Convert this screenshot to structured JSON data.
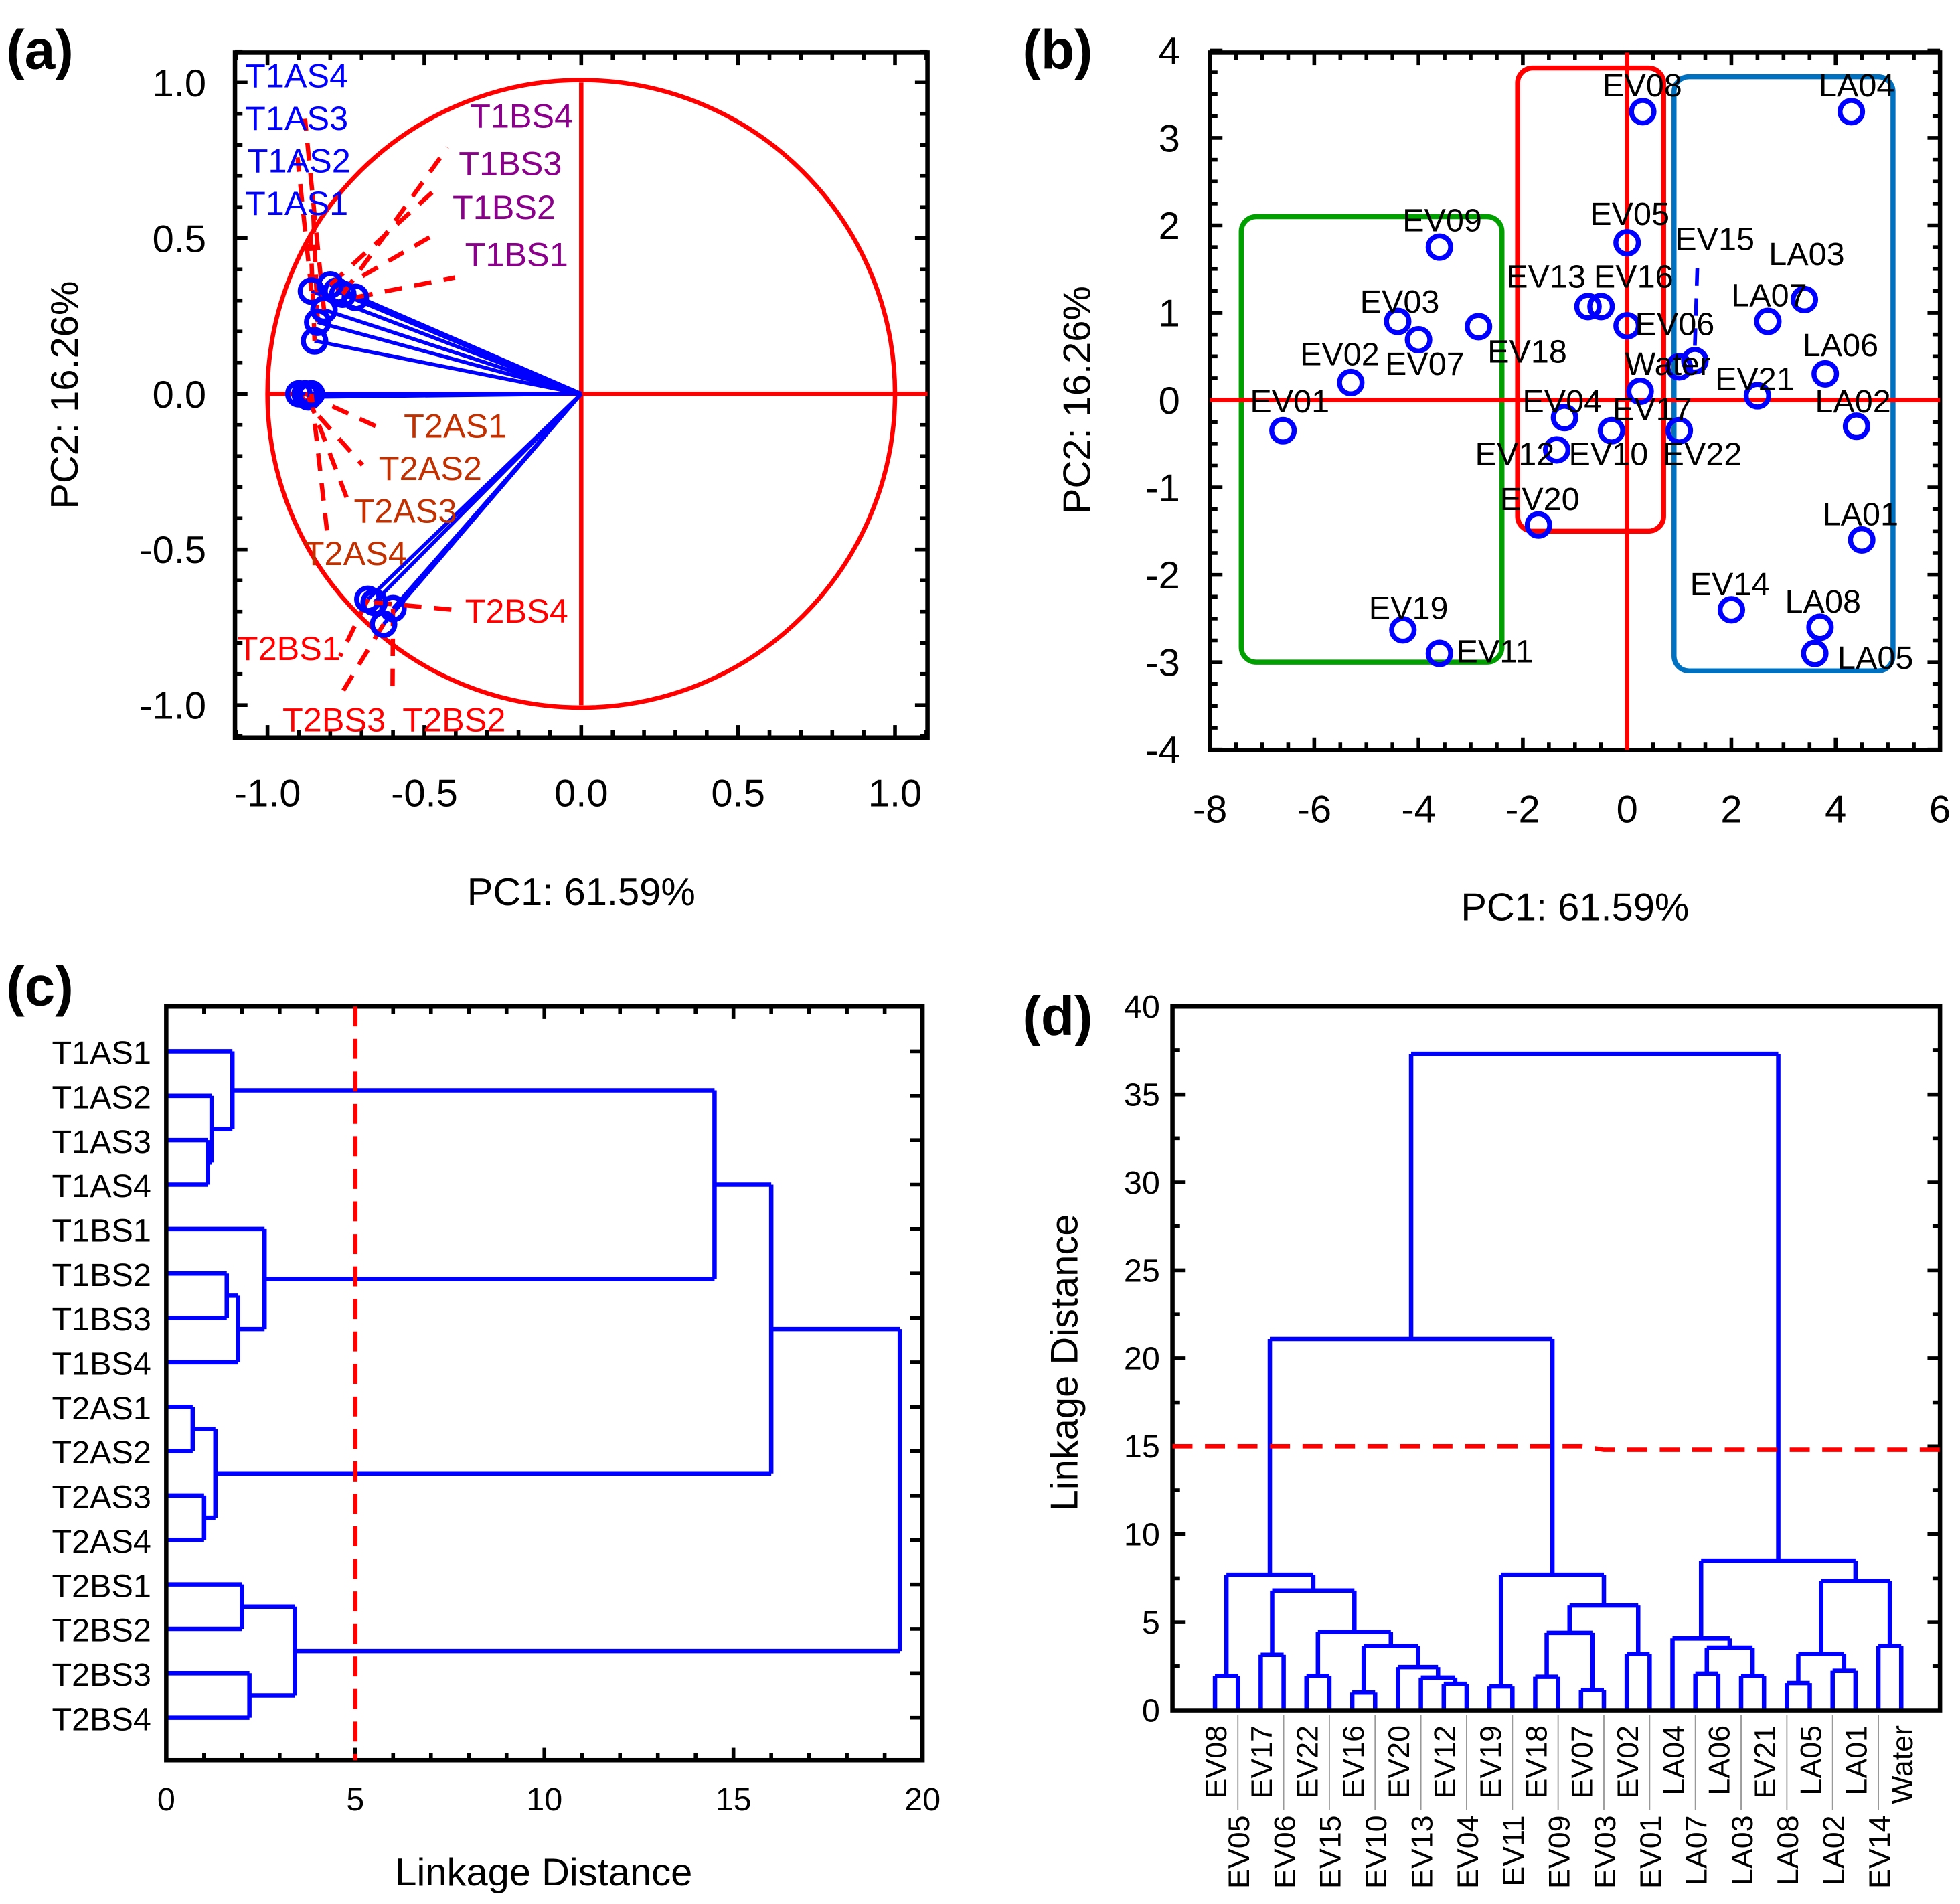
{
  "colors": {
    "blue": "#0000FF",
    "red": "#FF0000",
    "purple": "#8B008B",
    "orange": "#C03000",
    "green": "#00A000",
    "steel": "#0070C0",
    "axis": "#000000"
  },
  "chart_data": [
    {
      "panel": "(a)",
      "type": "scatter",
      "title": "",
      "xlabel": "PC1: 61.59%",
      "ylabel": "PC2: 16.26%",
      "xlim": [
        -1.1,
        1.1
      ],
      "ylim": [
        -1.1,
        1.1
      ],
      "xticks": [
        "-1.0",
        "-0.5",
        "0.0",
        "0.5",
        "1.0"
      ],
      "yticks": [
        "1.0",
        "0.5",
        "0.0",
        "-0.5",
        "-1.0"
      ],
      "unit_circle_radius": 1.0,
      "loadings": [
        {
          "name": "T1AS1",
          "x": -0.85,
          "y": 0.17,
          "group": "T1AS"
        },
        {
          "name": "T1AS2",
          "x": -0.84,
          "y": 0.23,
          "group": "T1AS"
        },
        {
          "name": "T1AS3",
          "x": -0.86,
          "y": 0.33,
          "group": "T1AS"
        },
        {
          "name": "T1AS4",
          "x": -0.82,
          "y": 0.27,
          "group": "T1AS"
        },
        {
          "name": "T1BS1",
          "x": -0.72,
          "y": 0.31,
          "group": "T1BS"
        },
        {
          "name": "T1BS2",
          "x": -0.78,
          "y": 0.33,
          "group": "T1BS"
        },
        {
          "name": "T1BS3",
          "x": -0.8,
          "y": 0.35,
          "group": "T1BS"
        },
        {
          "name": "T1BS4",
          "x": -0.76,
          "y": 0.32,
          "group": "T1BS"
        },
        {
          "name": "T2AS1",
          "x": -0.88,
          "y": 0.0,
          "group": "T2AS"
        },
        {
          "name": "T2AS2",
          "x": -0.9,
          "y": 0.0,
          "group": "T2AS"
        },
        {
          "name": "T2AS3",
          "x": -0.87,
          "y": -0.01,
          "group": "T2AS"
        },
        {
          "name": "T2AS4",
          "x": -0.86,
          "y": 0.0,
          "group": "T2AS"
        },
        {
          "name": "T2BS1",
          "x": -0.68,
          "y": -0.66,
          "group": "T2BS"
        },
        {
          "name": "T2BS2",
          "x": -0.6,
          "y": -0.69,
          "group": "T2BS"
        },
        {
          "name": "T2BS3",
          "x": -0.63,
          "y": -0.74,
          "group": "T2BS"
        },
        {
          "name": "T2BS4",
          "x": -0.66,
          "y": -0.67,
          "group": "T2BS"
        }
      ]
    },
    {
      "panel": "(b)",
      "type": "scatter",
      "xlabel": "PC1: 61.59%",
      "ylabel": "PC2: 16.26%",
      "xlim": [
        -8,
        6
      ],
      "ylim": [
        -4,
        4
      ],
      "xticks": [
        "-8",
        "-6",
        "-4",
        "-2",
        "0",
        "2",
        "4",
        "6"
      ],
      "yticks": [
        "4",
        "3",
        "2",
        "1",
        "0",
        "-1",
        "-2",
        "-3",
        "-4"
      ],
      "clusters": [
        {
          "color": "green",
          "x": [
            -7.4,
            -2.4
          ],
          "y": [
            -3.0,
            2.1
          ]
        },
        {
          "color": "red",
          "x": [
            -2.1,
            0.7
          ],
          "y": [
            -1.5,
            3.8
          ]
        },
        {
          "color": "steel",
          "x": [
            0.9,
            5.1
          ],
          "y": [
            -3.1,
            3.7
          ]
        }
      ],
      "points": [
        {
          "name": "EV01",
          "x": -6.6,
          "y": -0.35
        },
        {
          "name": "EV02",
          "x": -5.3,
          "y": 0.2
        },
        {
          "name": "EV03",
          "x": -4.4,
          "y": 0.9
        },
        {
          "name": "EV07",
          "x": -4.0,
          "y": 0.69
        },
        {
          "name": "EV09",
          "x": -3.6,
          "y": 1.75
        },
        {
          "name": "EV18",
          "x": -2.85,
          "y": 0.84
        },
        {
          "name": "EV19",
          "x": -4.3,
          "y": -2.63
        },
        {
          "name": "EV11",
          "x": -3.6,
          "y": -2.9
        },
        {
          "name": "EV20",
          "x": -1.7,
          "y": -1.43
        },
        {
          "name": "EV04",
          "x": -1.2,
          "y": -0.2
        },
        {
          "name": "EV12",
          "x": -1.35,
          "y": -0.57
        },
        {
          "name": "EV10",
          "x": -0.3,
          "y": -0.35
        },
        {
          "name": "EV13",
          "x": -0.75,
          "y": 1.07
        },
        {
          "name": "EV16",
          "x": -0.5,
          "y": 1.07
        },
        {
          "name": "EV06",
          "x": 0.0,
          "y": 0.85
        },
        {
          "name": "EV05",
          "x": 0.0,
          "y": 1.8
        },
        {
          "name": "EV08",
          "x": 0.3,
          "y": 3.3
        },
        {
          "name": "EV17",
          "x": 0.25,
          "y": 0.1
        },
        {
          "name": "EV22",
          "x": 1.0,
          "y": -0.35
        },
        {
          "name": "Water",
          "x": 1.0,
          "y": 0.38
        },
        {
          "name": "EV15",
          "x": 1.3,
          "y": 0.45
        },
        {
          "name": "EV21",
          "x": 2.5,
          "y": 0.05
        },
        {
          "name": "LA07",
          "x": 2.7,
          "y": 0.9
        },
        {
          "name": "LA03",
          "x": 3.4,
          "y": 1.15
        },
        {
          "name": "LA06",
          "x": 3.8,
          "y": 0.3
        },
        {
          "name": "LA02",
          "x": 4.4,
          "y": -0.3
        },
        {
          "name": "LA04",
          "x": 4.3,
          "y": 3.3
        },
        {
          "name": "LA01",
          "x": 4.5,
          "y": -1.6
        },
        {
          "name": "EV14",
          "x": 2.0,
          "y": -2.4
        },
        {
          "name": "LA08",
          "x": 3.7,
          "y": -2.6
        },
        {
          "name": "LA05",
          "x": 3.6,
          "y": -2.9
        }
      ]
    },
    {
      "panel": "(c)",
      "type": "dendrogram",
      "orientation": "horizontal",
      "xlabel": "Linkage Distance",
      "xlim": [
        0,
        20
      ],
      "xticks": [
        "0",
        "5",
        "10",
        "15",
        "20"
      ],
      "cut": 5,
      "leaves": [
        "T1AS1",
        "T1AS2",
        "T1AS3",
        "T1AS4",
        "T1BS1",
        "T1BS2",
        "T1BS3",
        "T1BS4",
        "T2AS1",
        "T2AS2",
        "T2AS3",
        "T2AS4",
        "T2BS1",
        "T2BS2",
        "T2BS3",
        "T2BS4"
      ],
      "tree": {
        "h": 19.4,
        "c": [
          {
            "h": 16.0,
            "c": [
              {
                "h": 14.5,
                "c": [
                  {
                    "h": 1.75,
                    "c": [
                      0,
                      {
                        "h": 1.2,
                        "c": [
                          1,
                          {
                            "h": 1.1,
                            "c": [
                              2,
                              3
                            ]
                          }
                        ]
                      }
                    ]
                  },
                  {
                    "h": 2.6,
                    "c": [
                      4,
                      {
                        "h": 1.9,
                        "c": [
                          {
                            "h": 1.6,
                            "c": [
                              5,
                              6
                            ]
                          },
                          7
                        ]
                      }
                    ]
                  }
                ]
              },
              {
                "h": 1.3,
                "c": [
                  {
                    "h": 0.7,
                    "c": [
                      8,
                      9
                    ]
                  },
                  {
                    "h": 1.0,
                    "c": [
                      10,
                      11
                    ]
                  }
                ]
              }
            ]
          },
          {
            "h": 3.4,
            "c": [
              {
                "h": 2.0,
                "c": [
                  12,
                  13
                ]
              },
              {
                "h": 2.2,
                "c": [
                  14,
                  15
                ]
              }
            ]
          }
        ]
      }
    },
    {
      "panel": "(d)",
      "type": "dendrogram",
      "orientation": "vertical",
      "ylabel": "Linkage Distance",
      "ylim": [
        0,
        40
      ],
      "yticks": [
        "0",
        "5",
        "10",
        "15",
        "20",
        "25",
        "30",
        "35",
        "40"
      ],
      "cut": 15,
      "leaves": [
        "EV08",
        "EV05",
        "EV17",
        "EV06",
        "EV22",
        "EV15",
        "EV16",
        "EV10",
        "EV20",
        "EV13",
        "EV12",
        "EV04",
        "EV19",
        "EV11",
        "EV18",
        "EV09",
        "EV07",
        "EV03",
        "EV02",
        "EV01",
        "LA04",
        "LA07",
        "LA06",
        "LA03",
        "EV21",
        "LA08",
        "LA05",
        "LA02",
        "LA01",
        "EV14",
        "Water"
      ],
      "tree": {
        "h": 37.3,
        "c": [
          {
            "h": 21.1,
            "c": [
              {
                "h": 7.7,
                "c": [
                  {
                    "h": 1.95,
                    "c": [
                      0,
                      1
                    ]
                  },
                  {
                    "h": 6.8,
                    "c": [
                      {
                        "h": 3.15,
                        "c": [
                          2,
                          3
                        ]
                      },
                      {
                        "h": 4.45,
                        "c": [
                          {
                            "h": 1.95,
                            "c": [
                              4,
                              5
                            ]
                          },
                          {
                            "h": 3.65,
                            "c": [
                              {
                                "h": 1.0,
                                "c": [
                                  6,
                                  7
                                ]
                              },
                              {
                                "h": 2.45,
                                "c": [
                                  8,
                                  {
                                    "h": 1.85,
                                    "c": [
                                      9,
                                      {
                                        "h": 1.5,
                                        "c": [
                                          10,
                                          11
                                        ]
                                      }
                                    ]
                                  }
                                ]
                              }
                            ]
                          }
                        ]
                      }
                    ]
                  }
                ]
              },
              {
                "h": 7.7,
                "c": [
                  {
                    "h": 1.35,
                    "c": [
                      12,
                      13
                    ]
                  },
                  {
                    "h": 5.95,
                    "c": [
                      {
                        "h": 4.4,
                        "c": [
                          {
                            "h": 1.9,
                            "c": [
                              14,
                              15
                            ]
                          },
                          {
                            "h": 1.15,
                            "c": [
                              16,
                              17
                            ]
                          }
                        ]
                      },
                      {
                        "h": 3.2,
                        "c": [
                          18,
                          19
                        ]
                      }
                    ]
                  }
                ]
              }
            ]
          },
          {
            "h": 8.5,
            "c": [
              {
                "h": 4.08,
                "c": [
                  20,
                  {
                    "h": 3.56,
                    "c": [
                      {
                        "h": 2.08,
                        "c": [
                          21,
                          22
                        ]
                      },
                      {
                        "h": 1.95,
                        "c": [
                          23,
                          24
                        ]
                      }
                    ]
                  }
                ]
              },
              {
                "h": 7.34,
                "c": [
                  {
                    "h": 3.2,
                    "c": [
                      {
                        "h": 1.54,
                        "c": [
                          25,
                          26
                        ]
                      },
                      {
                        "h": 2.24,
                        "c": [
                          27,
                          28
                        ]
                      }
                    ]
                  },
                  {
                    "h": 3.66,
                    "c": [
                      29,
                      30
                    ]
                  }
                ]
              }
            ]
          }
        ]
      }
    }
  ]
}
